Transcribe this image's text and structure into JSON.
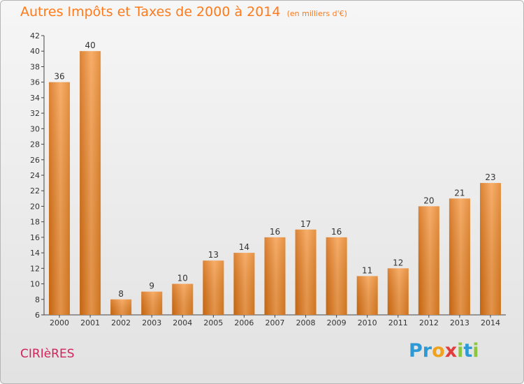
{
  "chart_data": {
    "type": "bar",
    "title": "Autres Impôts et Taxes de 2000 à 2014",
    "subtitle": "(en milliers d'€)",
    "categories": [
      "2000",
      "2001",
      "2002",
      "2003",
      "2004",
      "2005",
      "2006",
      "2007",
      "2008",
      "2009",
      "2010",
      "2011",
      "2012",
      "2013",
      "2014"
    ],
    "values": [
      36,
      40,
      8,
      9,
      10,
      13,
      14,
      16,
      17,
      16,
      11,
      12,
      20,
      21,
      23
    ],
    "ylim": [
      6,
      42
    ],
    "yticks": [
      6,
      8,
      10,
      12,
      14,
      16,
      18,
      20,
      22,
      24,
      26,
      28,
      30,
      32,
      34,
      36,
      38,
      40,
      42
    ],
    "grid": "none",
    "bar_color": "#f08b2a"
  },
  "commune": "CIRIèRES",
  "logo": {
    "text": "Proxiti",
    "letters": [
      {
        "ch": "P",
        "color": "#2d9ad6"
      },
      {
        "ch": "r",
        "color": "#2d9ad6"
      },
      {
        "ch": "o",
        "color": "#f0a21c"
      },
      {
        "ch": "x",
        "color": "#e23d3d"
      },
      {
        "ch": "i",
        "color": "#8cc63f"
      },
      {
        "ch": "t",
        "color": "#2d9ad6"
      },
      {
        "ch": "i",
        "color": "#8cc63f"
      }
    ]
  }
}
